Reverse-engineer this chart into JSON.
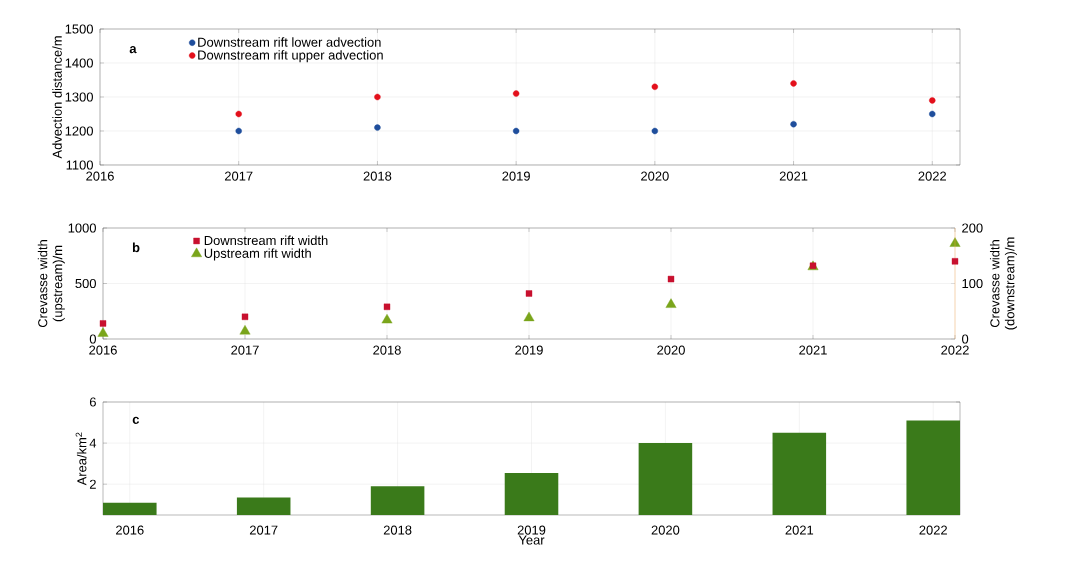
{
  "chart_data": [
    {
      "type": "scatter",
      "ylabel": "Advection distance/m",
      "annotations": [
        "a"
      ],
      "x": [
        2017,
        2018,
        2019,
        2020,
        2021,
        2022
      ],
      "series": [
        {
          "name": "Downstream rift lower advection",
          "color": "#1f4e9c",
          "values": [
            1200,
            1210,
            1200,
            1200,
            1220,
            1250
          ]
        },
        {
          "name": "Downstream rift upper advection",
          "color": "#e3101b",
          "values": [
            1250,
            1300,
            1310,
            1330,
            1340,
            1290
          ]
        }
      ],
      "xlim": [
        2016,
        2022.2
      ],
      "xticks": [
        2016,
        2017,
        2018,
        2019,
        2020,
        2021,
        2022
      ],
      "ylim": [
        1100,
        1500
      ],
      "yticks": [
        1100,
        1200,
        1300,
        1400,
        1500
      ],
      "grid": true,
      "legend": "top left",
      "marker": "circle"
    },
    {
      "type": "scatter",
      "ylabel": "Crevasse width (upstream)/m",
      "y2label": "Crevasse width (downstream)/m",
      "annotations": [
        "b"
      ],
      "x": [
        2016,
        2017,
        2018,
        2019,
        2020,
        2021,
        2022
      ],
      "series": [
        {
          "name": "Downstream rift width",
          "color": "#c8102e",
          "axis": "y2",
          "marker": "square",
          "values": [
            28,
            40,
            58,
            82,
            108,
            132,
            140
          ]
        },
        {
          "name": "Upstream rift width",
          "color": "#7aa51b",
          "marker": "triangle",
          "values": [
            50,
            70,
            170,
            190,
            310,
            650,
            860
          ]
        }
      ],
      "xlim": [
        2016,
        2022
      ],
      "xticks": [
        2016,
        2017,
        2018,
        2019,
        2020,
        2021,
        2022
      ],
      "ylim": [
        0,
        1000
      ],
      "yticks": [
        0,
        500,
        1000
      ],
      "y2lim": [
        0,
        200
      ],
      "y2ticks": [
        0,
        100,
        200
      ],
      "grid": true,
      "legend": "top left"
    },
    {
      "type": "bar",
      "xlabel": "Year",
      "ylabel": "Area/km$^{2}$",
      "annotations": [
        "c"
      ],
      "categories": [
        "2016",
        "2017",
        "2018",
        "2019",
        "2020",
        "2021",
        "2022"
      ],
      "values": [
        1.1,
        1.35,
        1.9,
        2.55,
        4.0,
        4.5,
        5.1
      ],
      "color": "#3a7a1a",
      "ylim": [
        0.5,
        6
      ],
      "yticks": [
        2,
        4,
        6
      ],
      "grid": true
    }
  ]
}
